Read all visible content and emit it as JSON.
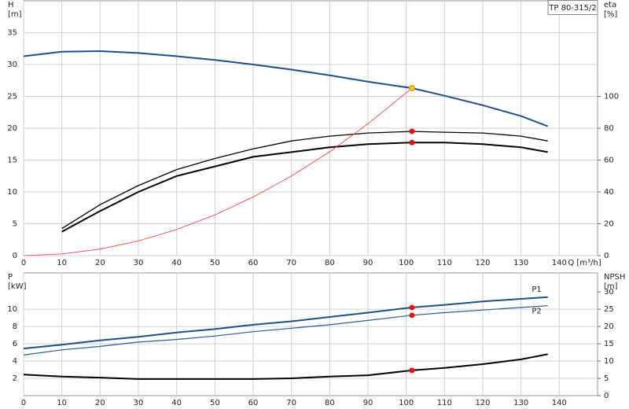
{
  "chart_data": [
    {
      "type": "line",
      "title": "TP 80-315/2",
      "y_label": "H",
      "y_unit": "[m]",
      "y2_label": "eta",
      "y2_unit": "[%]",
      "x_label": "Q [m³/h]",
      "xlim": [
        0,
        150
      ],
      "xticks": [
        0,
        10,
        20,
        30,
        40,
        50,
        60,
        70,
        80,
        90,
        100,
        110,
        120,
        130,
        140
      ],
      "ylim": [
        0,
        40
      ],
      "yticks": [
        0,
        5,
        10,
        15,
        20,
        25,
        30,
        35
      ],
      "y2lim": [
        0,
        160
      ],
      "y2ticks": [
        0,
        20,
        40,
        60,
        80,
        100
      ],
      "grid": true,
      "series": [
        {
          "color": "#1f4e8c",
          "width": 2,
          "x": [
            0,
            10,
            20,
            30,
            40,
            50,
            60,
            70,
            80,
            90,
            101.5,
            110,
            120,
            130,
            137
          ],
          "values": [
            31.3,
            32.0,
            32.1,
            31.8,
            31.3,
            30.7,
            30.0,
            29.2,
            28.3,
            27.3,
            26.3,
            25.1,
            23.6,
            21.9,
            20.3
          ]
        },
        {
          "color": "#000000",
          "width": 1.3,
          "axis": "y2",
          "x": [
            10,
            20,
            30,
            40,
            50,
            60,
            70,
            80,
            90,
            101.5,
            110,
            120,
            130,
            137
          ],
          "values": [
            17,
            32,
            44,
            54,
            61,
            67,
            72,
            75,
            77,
            78,
            77.5,
            77,
            75,
            72
          ]
        },
        {
          "color": "#000000",
          "width": 2,
          "axis": "y2",
          "x": [
            10,
            20,
            30,
            40,
            50,
            60,
            70,
            80,
            90,
            101.5,
            110,
            120,
            130,
            137
          ],
          "values": [
            15,
            28,
            40,
            50,
            56,
            62,
            65,
            68,
            70,
            71,
            71,
            70,
            68,
            65
          ]
        },
        {
          "color": "#ff3030",
          "width": 0.8,
          "x": [
            0,
            10,
            20,
            30,
            40,
            50,
            60,
            70,
            80,
            90,
            101.5
          ],
          "values": [
            0,
            0.26,
            1.02,
            2.3,
            4.1,
            6.4,
            9.2,
            12.5,
            16.3,
            20.7,
            26.3
          ]
        }
      ],
      "points": [
        {
          "x": 101.5,
          "y": 26.3,
          "color": "#f5c518"
        },
        {
          "x": 101.5,
          "y": 78,
          "axis": "y2",
          "color": "#e81010"
        },
        {
          "x": 101.5,
          "y": 71,
          "axis": "y2",
          "color": "#e81010"
        }
      ]
    },
    {
      "type": "line",
      "y_label": "P",
      "y_unit": "[kW]",
      "y2_label": "NPSH",
      "y2_unit": "[m]",
      "xlim": [
        0,
        150
      ],
      "xticks": [
        0,
        10,
        20,
        30,
        40,
        50,
        60,
        70,
        80,
        90,
        100,
        110,
        120,
        130,
        140
      ],
      "ylim": [
        0,
        14.2
      ],
      "yticks": [
        2,
        4,
        6,
        8,
        10
      ],
      "y2lim": [
        0,
        35.5
      ],
      "y2ticks": [
        0,
        5,
        10,
        15,
        20,
        25,
        30
      ],
      "grid": true,
      "series": [
        {
          "name": "P1",
          "color": "#1f4e8c",
          "width": 2,
          "x": [
            0,
            10,
            20,
            30,
            40,
            50,
            60,
            70,
            80,
            90,
            101.5,
            110,
            120,
            130,
            137
          ],
          "values": [
            5.45,
            5.9,
            6.4,
            6.8,
            7.3,
            7.7,
            8.2,
            8.6,
            9.1,
            9.6,
            10.2,
            10.5,
            10.9,
            11.2,
            11.4
          ]
        },
        {
          "name": "P2",
          "color": "#2a5a9a",
          "width": 1.2,
          "x": [
            0,
            10,
            20,
            30,
            40,
            50,
            60,
            70,
            80,
            90,
            101.5,
            110,
            120,
            130,
            137
          ],
          "values": [
            4.7,
            5.3,
            5.7,
            6.2,
            6.5,
            6.9,
            7.4,
            7.8,
            8.2,
            8.7,
            9.3,
            9.6,
            9.9,
            10.2,
            10.4
          ]
        },
        {
          "color": "#000000",
          "width": 2,
          "axis": "y2",
          "x": [
            0,
            10,
            20,
            30,
            40,
            50,
            60,
            70,
            80,
            90,
            101.5,
            110,
            120,
            130,
            137
          ],
          "values": [
            6.1,
            5.5,
            5.2,
            4.8,
            4.8,
            4.8,
            4.8,
            5.0,
            5.5,
            5.9,
            7.3,
            8.0,
            9.1,
            10.5,
            12.0
          ]
        }
      ],
      "points": [
        {
          "x": 101.5,
          "y": 10.2,
          "color": "#e81010"
        },
        {
          "x": 101.5,
          "y": 9.3,
          "color": "#e81010"
        },
        {
          "x": 101.5,
          "y": 7.3,
          "axis": "y2",
          "color": "#e81010"
        }
      ]
    }
  ]
}
